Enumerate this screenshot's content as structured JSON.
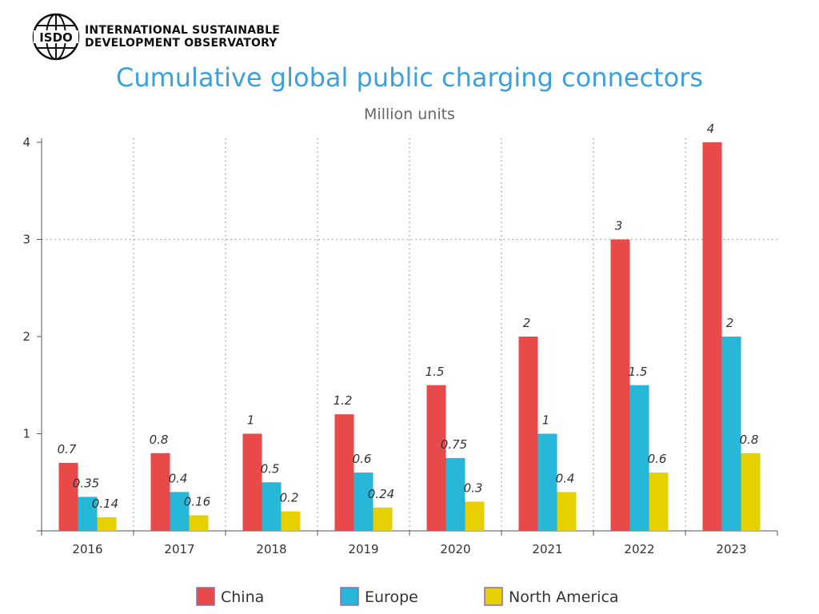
{
  "header": {
    "logo_text": "ISDO",
    "org_line1": "INTERNATIONAL SUSTAINABLE",
    "org_line2": "DEVELOPMENT OBSERVATORY"
  },
  "colors": {
    "title": "#3f9fd8",
    "China": "#e84a4a",
    "Europe": "#27b7d9",
    "North America": "#e6d000"
  },
  "chart_data": {
    "type": "bar",
    "title": "Cumulative global public charging connectors",
    "subtitle": "Million units",
    "xlabel": "",
    "ylabel": "",
    "categories": [
      "2016",
      "2017",
      "2018",
      "2019",
      "2020",
      "2021",
      "2022",
      "2023"
    ],
    "yticks": [
      1,
      2,
      3,
      4
    ],
    "ylim": [
      0,
      4
    ],
    "grid": "dotted",
    "legend": "bottom",
    "series": [
      {
        "name": "China",
        "values": [
          0.7,
          0.8,
          1,
          1.2,
          1.5,
          2,
          3,
          4
        ],
        "labels": [
          "0.7",
          "0.8",
          "1",
          "1.2",
          "1.5",
          "2",
          "3",
          "4"
        ]
      },
      {
        "name": "Europe",
        "values": [
          0.35,
          0.4,
          0.5,
          0.6,
          0.75,
          1,
          1.5,
          2
        ],
        "labels": [
          "0.35",
          "0.4",
          "0.5",
          "0.6",
          "0.75",
          "1",
          "1.5",
          "2"
        ]
      },
      {
        "name": "North America",
        "values": [
          0.14,
          0.16,
          0.2,
          0.24,
          0.3,
          0.4,
          0.6,
          0.8
        ],
        "labels": [
          "0.14",
          "0.16",
          "0.2",
          "0.24",
          "0.3",
          "0.4",
          "0.6",
          "0.8"
        ]
      }
    ]
  }
}
